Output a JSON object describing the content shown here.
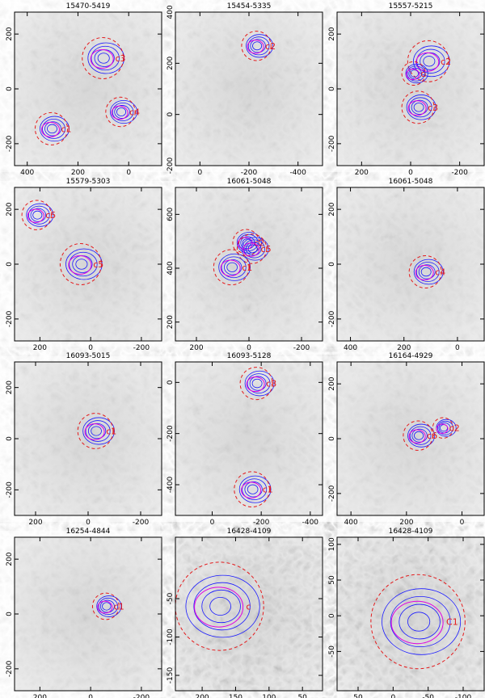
{
  "panels": [
    {
      "title": "15470-5419",
      "xlim": [
        450,
        -130
      ],
      "xticks": [
        400,
        200,
        0
      ],
      "ylim": [
        -280,
        280
      ],
      "yticks": [
        -200,
        0,
        200
      ],
      "labels": [
        "c3",
        "c4",
        "c1"
      ]
    },
    {
      "title": "15454-5335",
      "xlim": [
        100,
        -500
      ],
      "xticks": [
        0,
        -200,
        -400
      ],
      "ylim": [
        -200,
        400
      ],
      "yticks": [
        -200,
        0,
        200,
        400
      ],
      "labels": [
        "c2"
      ]
    },
    {
      "title": "15557-5215",
      "xlim": [
        300,
        -300
      ],
      "xticks": [
        200,
        0,
        -200
      ],
      "ylim": [
        -280,
        280
      ],
      "yticks": [
        -200,
        0,
        200
      ],
      "labels": [
        "c2",
        "c",
        "c3"
      ]
    },
    {
      "title": "15579-5303",
      "xlim": [
        300,
        -280
      ],
      "xticks": [
        200,
        0,
        -200
      ],
      "ylim": [
        -280,
        280
      ],
      "yticks": [
        -200,
        0,
        200
      ],
      "labels": [
        "c5",
        "c5"
      ]
    },
    {
      "title": "16061-5048",
      "xlim": [
        280,
        -280
      ],
      "xticks": [
        200,
        0,
        -200
      ],
      "ylim": [
        130,
        700
      ],
      "yticks": [
        200,
        400,
        600
      ],
      "labels": [
        "c2",
        "c5",
        "c1"
      ]
    },
    {
      "title": "16061-5048",
      "xlim": [
        450,
        -100
      ],
      "xticks": [
        400,
        200,
        0
      ],
      "ylim": [
        -280,
        280
      ],
      "yticks": [
        -200,
        0,
        200
      ],
      "labels": [
        "c4"
      ]
    },
    {
      "title": "16093-5015",
      "xlim": [
        280,
        -280
      ],
      "xticks": [
        200,
        0,
        -200
      ],
      "ylim": [
        -300,
        300
      ],
      "yticks": [
        -200,
        0,
        200
      ],
      "labels": [
        "c1"
      ]
    },
    {
      "title": "16093-5128",
      "xlim": [
        150,
        -450
      ],
      "xticks": [
        0,
        -200,
        -400
      ],
      "ylim": [
        -520,
        80
      ],
      "yticks": [
        -400,
        -200,
        0
      ],
      "labels": [
        "c8",
        "c1"
      ]
    },
    {
      "title": "16164-4929",
      "xlim": [
        450,
        -80
      ],
      "xticks": [
        400,
        200,
        0
      ],
      "ylim": [
        -280,
        280
      ],
      "yticks": [
        -200,
        0,
        200
      ],
      "labels": [
        "c6",
        "c2"
      ]
    },
    {
      "title": "16254-4844",
      "xlim": [
        300,
        -280
      ],
      "xticks": [
        200,
        0,
        -200
      ],
      "ylim": [
        -280,
        280
      ],
      "yticks": [
        -200,
        0,
        200
      ],
      "labels": [
        "c1"
      ]
    },
    {
      "title": "16428-4109",
      "xlim": [
        240,
        20
      ],
      "xticks": [
        200,
        150,
        100,
        50
      ],
      "ylim": [
        -170,
        30
      ],
      "yticks": [
        -150,
        -100,
        -50
      ],
      "labels": [
        "c"
      ]
    },
    {
      "title": "16428-4109",
      "xlim": [
        80,
        -130
      ],
      "xticks": [
        50,
        0,
        -50,
        -100
      ],
      "ylim": [
        -105,
        110
      ],
      "yticks": [
        -50,
        0,
        50,
        100
      ],
      "labels": [
        "C1"
      ]
    }
  ]
}
